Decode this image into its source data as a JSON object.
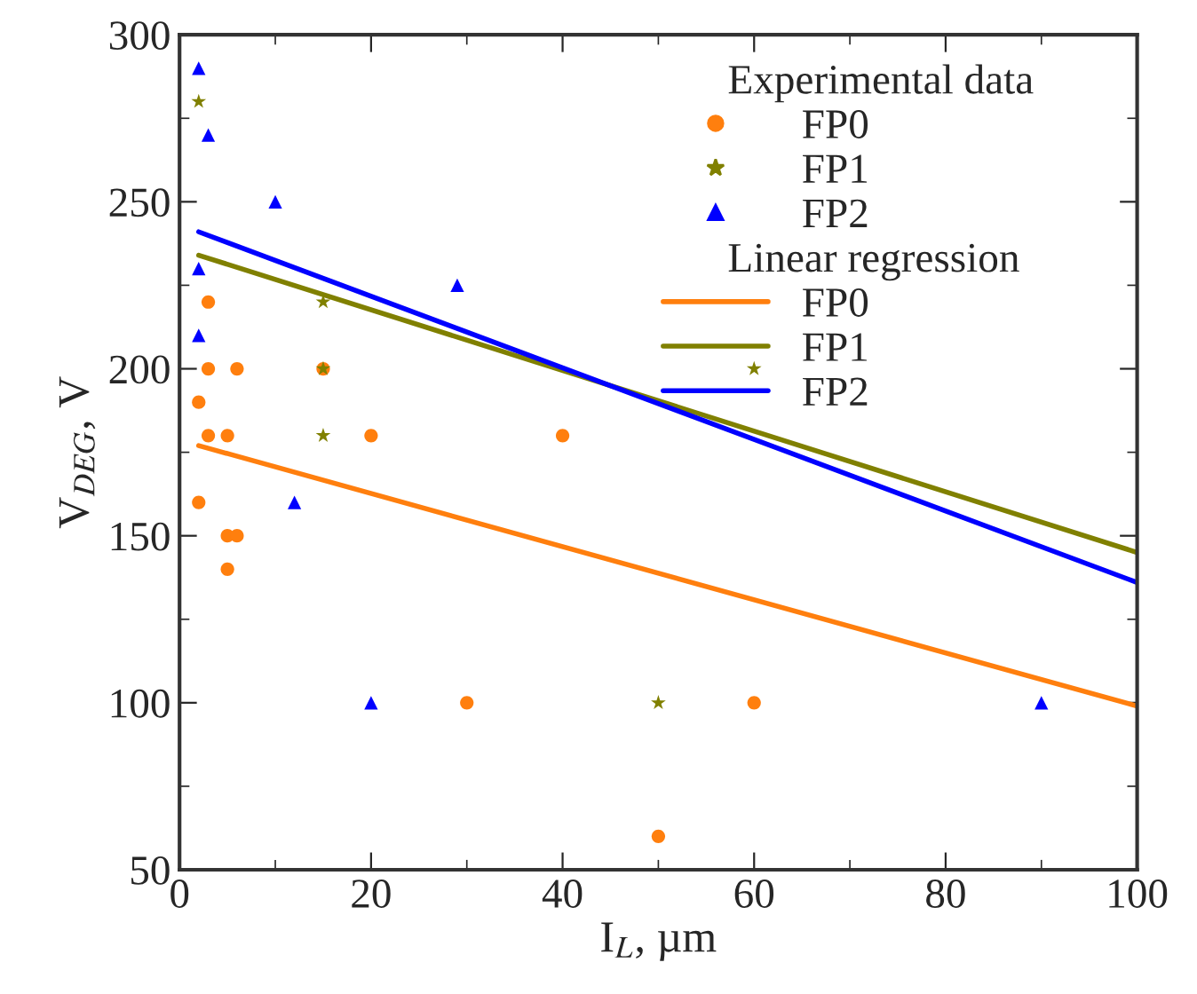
{
  "chart_data": {
    "type": "scatter",
    "xlabel": "I$_{L}$, µm",
    "ylabel": "V$_{DEG}$, V",
    "legend_title": "Experimental data",
    "annotations": [
      "Linear regression"
    ],
    "xlim": [
      0,
      100
    ],
    "xticks": [
      0,
      20,
      40,
      60,
      80,
      100
    ],
    "ylim": [
      50,
      300
    ],
    "yticks": [
      50,
      100,
      150,
      200,
      250,
      300
    ],
    "grid": false,
    "legend": "top right",
    "series": [
      {
        "name": "FP0",
        "color": "#ff7f0e",
        "marker": "circle",
        "x": [
          2,
          2,
          3,
          3,
          3,
          5,
          5,
          5,
          6,
          6,
          15,
          20,
          30,
          40,
          50,
          60
        ],
        "values": [
          190,
          160,
          220,
          200,
          180,
          180,
          150,
          140,
          150,
          200,
          200,
          180,
          100,
          180,
          60,
          100
        ]
      },
      {
        "name": "FP1",
        "color": "#808000",
        "marker": "star",
        "x": [
          2,
          15,
          15,
          15,
          50,
          60
        ],
        "values": [
          280,
          220,
          200,
          180,
          100,
          200
        ]
      },
      {
        "name": "FP2",
        "color": "#0000ff",
        "marker": "triangle",
        "x": [
          2,
          3,
          10,
          2,
          2,
          12,
          29,
          20,
          90
        ],
        "values": [
          290,
          270,
          250,
          230,
          210,
          160,
          225,
          100,
          100
        ]
      },
      {
        "name": "FP0",
        "type": "line",
        "color": "#ff7f0e",
        "marker": "none",
        "line_style": "solid",
        "x": [
          2,
          100
        ],
        "values": [
          177,
          99
        ]
      },
      {
        "name": "FP1",
        "type": "line",
        "color": "#808000",
        "marker": "none",
        "line_style": "solid",
        "x": [
          2,
          100
        ],
        "values": [
          234,
          145
        ]
      },
      {
        "name": "FP2",
        "type": "line",
        "color": "#0000ff",
        "marker": "none",
        "line_style": "solid",
        "x": [
          2,
          100
        ],
        "values": [
          241,
          136
        ]
      }
    ]
  }
}
